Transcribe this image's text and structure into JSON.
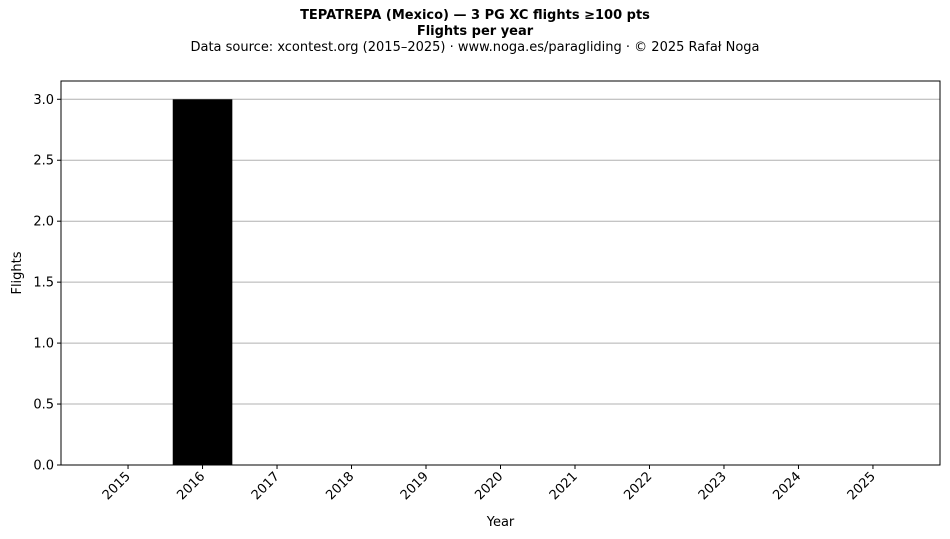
{
  "header": {
    "title_line1": "TEPATREPA (Mexico)  —  3 PG XC flights ≥100 pts",
    "title_line2": "Flights per year",
    "subtitle": "Data source: xcontest.org (2015–2025)  ·  www.noga.es/paragliding  ·  © 2025 Rafał Noga"
  },
  "chart_data": {
    "type": "bar",
    "title": "Flights per year",
    "xlabel": "Year",
    "ylabel": "Flights",
    "categories": [
      "2015",
      "2016",
      "2017",
      "2018",
      "2019",
      "2020",
      "2021",
      "2022",
      "2023",
      "2024",
      "2025"
    ],
    "values": [
      0,
      3,
      0,
      0,
      0,
      0,
      0,
      0,
      0,
      0,
      0
    ],
    "ylim": [
      0,
      3.15
    ],
    "yticks": [
      "0.0",
      "0.5",
      "1.0",
      "1.5",
      "2.0",
      "2.5",
      "3.0"
    ],
    "grid": "horizontal",
    "bar_color": "#000000",
    "grid_color": "#b0b0b0"
  }
}
